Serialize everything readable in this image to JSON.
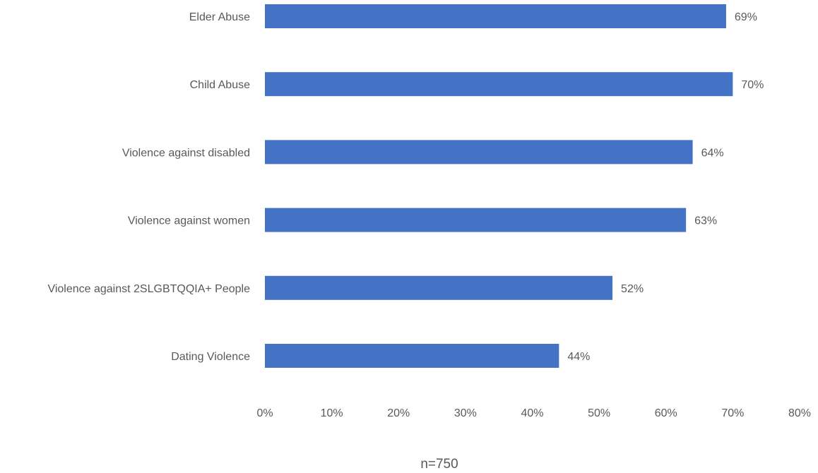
{
  "chart_data": {
    "type": "bar",
    "orientation": "horizontal",
    "categories": [
      "Elder Abuse",
      "Child Abuse",
      "Violence against disabled",
      "Violence against women",
      "Violence against 2SLGBTQQIA+ People",
      "Dating Violence"
    ],
    "values": [
      69,
      70,
      64,
      63,
      52,
      44
    ],
    "value_labels": [
      "69%",
      "70%",
      "64%",
      "63%",
      "52%",
      "44%"
    ],
    "xlim": [
      0,
      80
    ],
    "x_ticks": [
      0,
      10,
      20,
      30,
      40,
      50,
      60,
      70,
      80
    ],
    "x_tick_labels": [
      "0%",
      "10%",
      "20%",
      "30%",
      "40%",
      "50%",
      "60%",
      "70%",
      "80%"
    ],
    "bar_color": "#4472C4",
    "grid": false,
    "legend": "none",
    "note": "n=750"
  }
}
